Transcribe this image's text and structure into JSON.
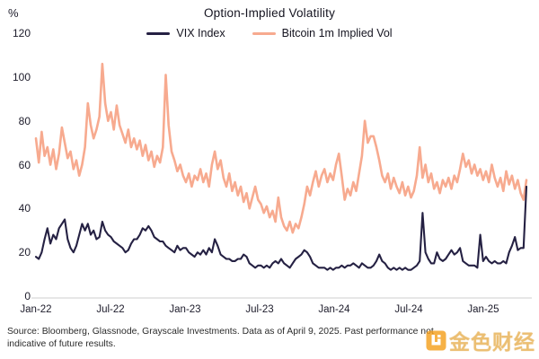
{
  "header": {
    "unit_label": "%",
    "title": "Option-Implied Volatility"
  },
  "legend": [
    {
      "label": "VIX Index",
      "color": "#252143"
    },
    {
      "label": "Bitcoin 1m Implied Vol",
      "color": "#f7aa8f"
    }
  ],
  "chart_data": {
    "type": "line",
    "title": "Option-Implied Volatility",
    "ylabel": "%",
    "ylim": [
      0,
      120
    ],
    "y_ticks": [
      120,
      100,
      80,
      60,
      40,
      20,
      0
    ],
    "x_ticks": [
      "Jan-22",
      "Jul-22",
      "Jan-23",
      "Jul-23",
      "Jan-24",
      "Jul-24",
      "Jan-25"
    ],
    "x_range": "Jan 2022 to Apr 9 2025",
    "sampling": "weekly",
    "grid": false,
    "legend_position": "top-center",
    "series": [
      {
        "name": "VIX Index",
        "color": "#252143",
        "values": [
          18,
          17,
          20,
          26,
          31,
          24,
          28,
          26,
          31,
          33,
          35,
          26,
          22,
          20,
          23,
          28,
          33,
          30,
          33,
          28,
          30,
          26,
          27,
          34,
          30,
          28,
          27,
          25,
          24,
          23,
          22,
          20,
          21,
          24,
          26,
          26,
          28,
          31,
          30,
          32,
          30,
          27,
          26,
          25,
          25,
          23,
          22,
          21,
          20,
          23,
          21,
          22,
          22,
          20,
          19,
          18,
          20,
          19,
          21,
          19,
          22,
          20,
          26,
          23,
          19,
          18,
          17,
          17,
          16,
          16,
          17,
          17,
          19,
          18,
          15,
          14,
          13,
          14,
          14,
          13,
          14,
          13,
          15,
          16,
          15,
          17,
          15,
          14,
          13,
          15,
          17,
          18,
          19,
          21,
          20,
          18,
          15,
          14,
          13,
          13,
          13,
          12,
          13,
          12,
          13,
          13,
          14,
          13,
          14,
          14,
          15,
          14,
          13,
          15,
          14,
          13,
          13,
          14,
          16,
          19,
          16,
          15,
          13,
          12,
          13,
          12,
          13,
          12,
          13,
          12,
          12,
          13,
          14,
          16,
          38,
          20,
          17,
          15,
          15,
          20,
          17,
          16,
          17,
          19,
          21,
          19,
          20,
          22,
          16,
          15,
          14,
          14,
          14,
          13,
          28,
          16,
          18,
          16,
          15,
          16,
          15,
          15,
          16,
          15,
          20,
          23,
          27,
          21,
          22,
          22,
          50
        ]
      },
      {
        "name": "Bitcoin 1m Implied Vol",
        "color": "#f7aa8f",
        "values": [
          72,
          61,
          75,
          64,
          68,
          60,
          67,
          58,
          65,
          77,
          70,
          63,
          66,
          58,
          62,
          55,
          60,
          68,
          88,
          78,
          72,
          76,
          82,
          106,
          88,
          80,
          84,
          76,
          87,
          78,
          74,
          70,
          76,
          68,
          72,
          67,
          71,
          64,
          69,
          62,
          66,
          59,
          64,
          61,
          68,
          101,
          78,
          66,
          62,
          57,
          60,
          55,
          52,
          56,
          50,
          55,
          53,
          58,
          52,
          56,
          50,
          60,
          66,
          58,
          62,
          54,
          50,
          56,
          48,
          52,
          46,
          50,
          43,
          47,
          40,
          45,
          50,
          44,
          42,
          38,
          41,
          36,
          39,
          34,
          45,
          36,
          32,
          30,
          34,
          29,
          33,
          31,
          36,
          42,
          50,
          46,
          52,
          57,
          50,
          55,
          58,
          52,
          56,
          53,
          60,
          65,
          55,
          44,
          49,
          46,
          52,
          48,
          56,
          64,
          80,
          70,
          73,
          73,
          68,
          62,
          55,
          52,
          56,
          49,
          54,
          50,
          47,
          52,
          46,
          50,
          45,
          48,
          55,
          68,
          54,
          60,
          52,
          56,
          49,
          52,
          47,
          53,
          50,
          54,
          49,
          55,
          52,
          58,
          65,
          59,
          62,
          56,
          60,
          55,
          58,
          53,
          57,
          52,
          60,
          54,
          50,
          54,
          48,
          57,
          51,
          55,
          49,
          53,
          47,
          44,
          53
        ]
      }
    ]
  },
  "footer": {
    "source": "Source: Bloomberg, Glassnode, Grayscale Investments. Data as of April 9, 2025. Past performance not\nindicative of future results."
  },
  "watermark": {
    "text": "金色财经",
    "color": "#E8A33D"
  }
}
